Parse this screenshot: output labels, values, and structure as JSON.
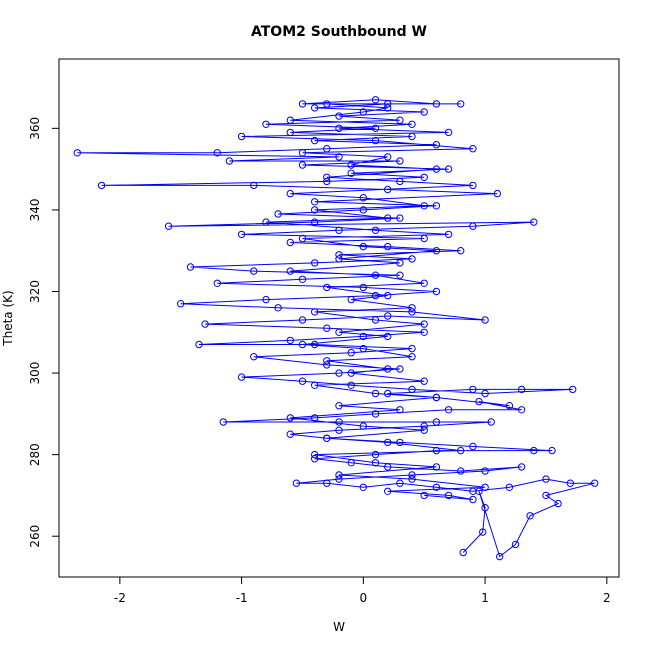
{
  "chart_data": {
    "type": "scatter",
    "title": "ATOM2 Southbound W",
    "xlabel": "W",
    "ylabel": "Theta (K)",
    "xlim": [
      -2.5,
      2.1
    ],
    "ylim": [
      250,
      377
    ],
    "xticks": [
      -2,
      -1,
      0,
      1,
      2
    ],
    "yticks": [
      260,
      280,
      300,
      320,
      340,
      360
    ],
    "grid": false,
    "legend": "none",
    "series": [
      {
        "style": "points-and-lines",
        "color": "#0000ff",
        "marker": "open-circle",
        "points": [
          [
            0.82,
            256
          ],
          [
            0.98,
            261
          ],
          [
            1.0,
            267
          ],
          [
            0.95,
            271
          ],
          [
            1.12,
            255
          ],
          [
            1.25,
            258
          ],
          [
            1.37,
            265
          ],
          [
            1.6,
            268
          ],
          [
            1.5,
            270
          ],
          [
            1.9,
            273
          ],
          [
            1.7,
            273
          ],
          [
            1.5,
            274
          ],
          [
            1.2,
            272
          ],
          [
            0.9,
            271
          ],
          [
            0.6,
            272
          ],
          [
            0.3,
            273
          ],
          [
            0.0,
            272
          ],
          [
            -0.3,
            273
          ],
          [
            -0.55,
            273
          ],
          [
            -0.2,
            274
          ],
          [
            0.4,
            275
          ],
          [
            1.0,
            276
          ],
          [
            1.3,
            277
          ],
          [
            0.8,
            276
          ],
          [
            0.2,
            277
          ],
          [
            -0.1,
            278
          ],
          [
            -0.4,
            279
          ],
          [
            0.1,
            280
          ],
          [
            0.6,
            281
          ],
          [
            1.4,
            281
          ],
          [
            1.55,
            281
          ],
          [
            0.9,
            282
          ],
          [
            0.3,
            283
          ],
          [
            -0.3,
            284
          ],
          [
            -0.6,
            285
          ],
          [
            -0.2,
            286
          ],
          [
            0.5,
            287
          ],
          [
            1.05,
            288
          ],
          [
            0.6,
            288
          ],
          [
            -0.2,
            288
          ],
          [
            -1.15,
            288
          ],
          [
            -0.4,
            289
          ],
          [
            0.1,
            290
          ],
          [
            0.7,
            291
          ],
          [
            1.3,
            291
          ],
          [
            0.95,
            293
          ],
          [
            1.2,
            292
          ],
          [
            0.6,
            294
          ],
          [
            0.2,
            295
          ],
          [
            0.9,
            296
          ],
          [
            1.3,
            296
          ],
          [
            1.72,
            296
          ],
          [
            1.0,
            295
          ],
          [
            0.4,
            296
          ],
          [
            -0.1,
            297
          ],
          [
            -0.5,
            298
          ],
          [
            -1.0,
            299
          ],
          [
            -0.2,
            300
          ],
          [
            0.3,
            301
          ],
          [
            -0.3,
            302
          ],
          [
            -0.9,
            304
          ],
          [
            -0.1,
            305
          ],
          [
            0.4,
            306
          ],
          [
            -0.4,
            307
          ],
          [
            -1.35,
            307
          ],
          [
            -0.6,
            308
          ],
          [
            0.0,
            309
          ],
          [
            0.5,
            310
          ],
          [
            -0.3,
            311
          ],
          [
            -1.3,
            312
          ],
          [
            -0.5,
            313
          ],
          [
            0.2,
            314
          ],
          [
            1.0,
            313
          ],
          [
            0.4,
            315
          ],
          [
            -0.7,
            316
          ],
          [
            -1.5,
            317
          ],
          [
            -0.8,
            318
          ],
          [
            0.1,
            319
          ],
          [
            0.6,
            320
          ],
          [
            0.0,
            321
          ],
          [
            -1.2,
            322
          ],
          [
            -0.5,
            323
          ],
          [
            0.3,
            324
          ],
          [
            -0.9,
            325
          ],
          [
            -1.42,
            326
          ],
          [
            -0.4,
            327
          ],
          [
            0.4,
            328
          ],
          [
            -0.2,
            329
          ],
          [
            0.8,
            330
          ],
          [
            0.2,
            331
          ],
          [
            -0.6,
            332
          ],
          [
            0.5,
            333
          ],
          [
            -1.0,
            334
          ],
          [
            -0.2,
            335
          ],
          [
            0.9,
            336
          ],
          [
            1.4,
            337
          ],
          [
            -1.6,
            336
          ],
          [
            -0.4,
            337
          ],
          [
            0.3,
            338
          ],
          [
            -0.7,
            339
          ],
          [
            0.0,
            340
          ],
          [
            0.6,
            341
          ],
          [
            -0.4,
            342
          ],
          [
            1.1,
            344
          ],
          [
            0.2,
            345
          ],
          [
            -0.9,
            346
          ],
          [
            -2.15,
            346
          ],
          [
            -0.3,
            347
          ],
          [
            0.5,
            348
          ],
          [
            -0.1,
            349
          ],
          [
            0.7,
            350
          ],
          [
            -0.5,
            351
          ],
          [
            0.3,
            352
          ],
          [
            -1.1,
            352
          ],
          [
            -0.2,
            353
          ],
          [
            -2.35,
            354
          ],
          [
            -1.2,
            354
          ],
          [
            -0.3,
            355
          ],
          [
            0.6,
            356
          ],
          [
            -0.4,
            357
          ],
          [
            0.4,
            358
          ],
          [
            -0.6,
            359
          ],
          [
            0.1,
            360
          ],
          [
            -0.8,
            361
          ],
          [
            0.3,
            362
          ],
          [
            -0.2,
            363
          ],
          [
            0.5,
            364
          ],
          [
            -0.4,
            365
          ],
          [
            0.2,
            366
          ],
          [
            0.8,
            366
          ],
          [
            -0.5,
            366
          ],
          [
            0.1,
            367
          ],
          [
            0.6,
            366
          ],
          [
            -0.3,
            366
          ],
          [
            0.2,
            365
          ],
          [
            0.0,
            364
          ],
          [
            -0.6,
            362
          ],
          [
            0.4,
            361
          ],
          [
            -0.2,
            360
          ],
          [
            0.7,
            359
          ],
          [
            -1.0,
            358
          ],
          [
            0.1,
            357
          ],
          [
            0.9,
            355
          ],
          [
            -0.5,
            354
          ],
          [
            0.2,
            353
          ],
          [
            -0.1,
            351
          ],
          [
            0.6,
            350
          ],
          [
            -0.3,
            348
          ],
          [
            0.3,
            347
          ],
          [
            0.9,
            346
          ],
          [
            -0.6,
            344
          ],
          [
            0.0,
            343
          ],
          [
            0.5,
            341
          ],
          [
            -0.4,
            340
          ],
          [
            0.2,
            338
          ],
          [
            -0.8,
            337
          ],
          [
            0.1,
            335
          ],
          [
            0.7,
            334
          ],
          [
            -0.5,
            333
          ],
          [
            0.0,
            331
          ],
          [
            0.6,
            330
          ],
          [
            -0.2,
            328
          ],
          [
            0.3,
            327
          ],
          [
            -0.6,
            325
          ],
          [
            0.1,
            324
          ],
          [
            0.5,
            322
          ],
          [
            -0.3,
            321
          ],
          [
            0.2,
            319
          ],
          [
            -0.1,
            318
          ],
          [
            0.4,
            316
          ],
          [
            -0.4,
            315
          ],
          [
            0.1,
            313
          ],
          [
            0.5,
            312
          ],
          [
            -0.2,
            310
          ],
          [
            0.2,
            309
          ],
          [
            -0.5,
            307
          ],
          [
            0.0,
            306
          ],
          [
            0.4,
            304
          ],
          [
            -0.3,
            303
          ],
          [
            0.2,
            301
          ],
          [
            -0.1,
            300
          ],
          [
            0.5,
            298
          ],
          [
            -0.4,
            297
          ],
          [
            0.1,
            295
          ],
          [
            0.6,
            294
          ],
          [
            -0.2,
            292
          ],
          [
            0.3,
            291
          ],
          [
            -0.6,
            289
          ],
          [
            0.0,
            287
          ],
          [
            0.5,
            286
          ],
          [
            -0.3,
            284
          ],
          [
            0.2,
            283
          ],
          [
            0.8,
            281
          ],
          [
            -0.4,
            280
          ],
          [
            0.1,
            278
          ],
          [
            0.6,
            277
          ],
          [
            -0.2,
            275
          ],
          [
            0.4,
            274
          ],
          [
            1.0,
            272
          ],
          [
            0.2,
            271
          ],
          [
            0.7,
            270
          ],
          [
            0.9,
            269
          ],
          [
            0.5,
            270
          ]
        ]
      }
    ]
  }
}
